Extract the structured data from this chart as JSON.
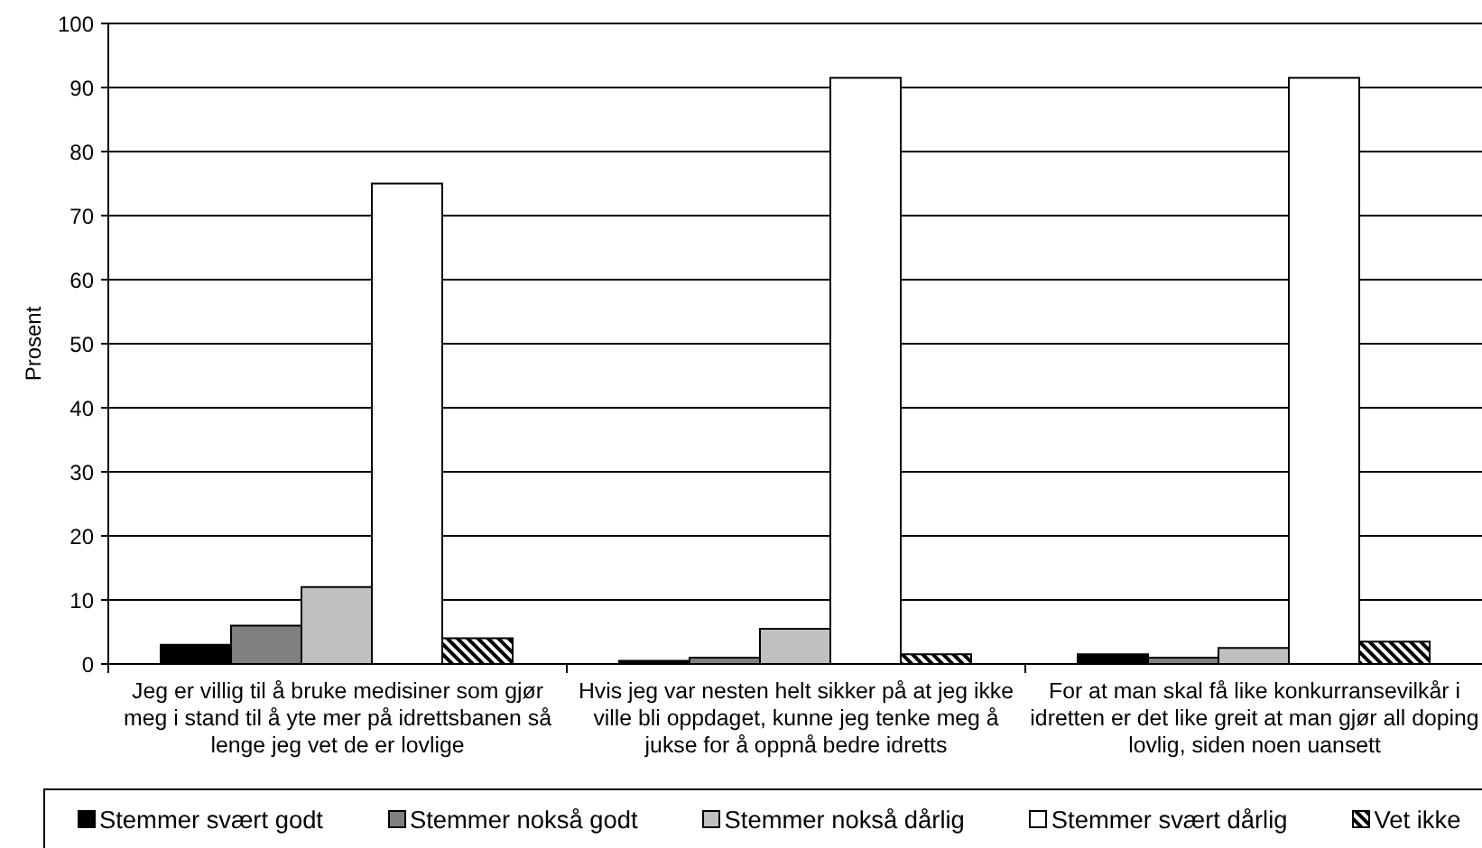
{
  "chart_data": {
    "type": "bar",
    "ylabel": "Prosent",
    "categories": [
      "Jeg er villig til å bruke medisiner som gjør meg i stand til å yte mer på idrettsbanen så lenge jeg vet de er lovlige",
      "Hvis jeg var nesten helt sikker på at jeg ikke ville bli oppdaget, kunne jeg tenke meg å jukse for å oppnå bedre idretts",
      "For at man skal få like konkurransevilkår i idretten er det like greit at man gjør all doping lovlig, siden noen uansett"
    ],
    "series": [
      {
        "name": "Stemmer svært godt",
        "color": "#000000",
        "values": [
          3,
          0.5,
          1.5
        ]
      },
      {
        "name": "Stemmer nokså godt",
        "color": "#808080",
        "values": [
          6,
          1,
          1
        ]
      },
      {
        "name": "Stemmer nokså dårlig",
        "color": "#c0c0c0",
        "values": [
          12,
          5.5,
          2.5
        ]
      },
      {
        "name": "Stemmer svært dårlig",
        "color": "#ffffff",
        "values": [
          75,
          91.5,
          91.5
        ]
      },
      {
        "name": "Vet ikke",
        "color": "#000000",
        "values": [
          4,
          1.5,
          3.5
        ]
      }
    ],
    "ylim": [
      0,
      100
    ],
    "yticks": [
      0,
      10,
      20,
      30,
      40,
      50,
      60,
      70,
      80,
      90,
      100
    ],
    "grid": "y",
    "legend": "bottom"
  }
}
